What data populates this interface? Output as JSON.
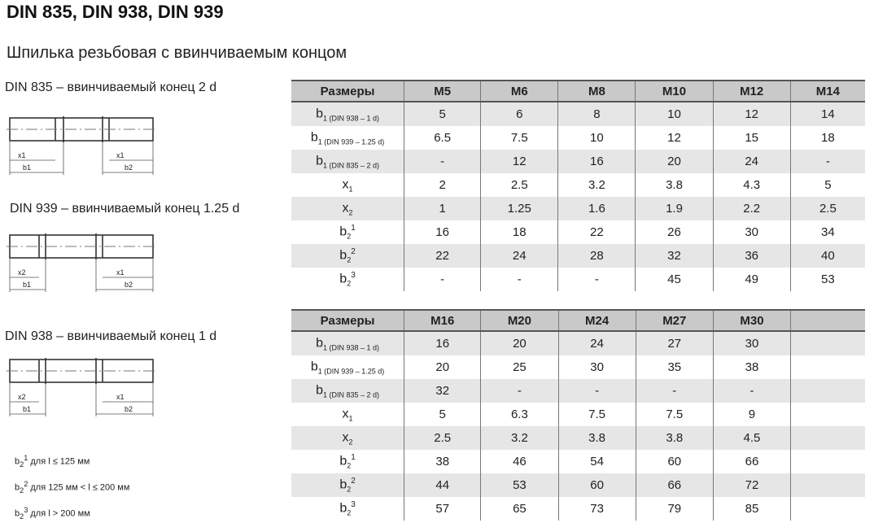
{
  "title": "DIN 835, DIN 938, DIN 939",
  "subtitle": "Шпилька резьбовая с ввинчиваемым концом",
  "diagrams": [
    {
      "caption": "DIN 835 – ввинчиваемый конец 2 d",
      "labels": [
        "x1",
        "b1",
        "x1",
        "b2"
      ]
    },
    {
      "caption": "DIN 939 – ввинчиваемый конец 1.25 d",
      "labels": [
        "x2",
        "b1",
        "x1",
        "b2"
      ]
    },
    {
      "caption": "DIN 938 – ввинчиваемый конец 1 d",
      "labels": [
        "x2",
        "b1",
        "x1",
        "b2"
      ]
    }
  ],
  "notes": [
    {
      "b": "b",
      "sub": "2",
      "sup": "1",
      "text": " для l ≤ 125 мм"
    },
    {
      "b": "b",
      "sub": "2",
      "sup": "2",
      "text": " для 125 мм < l ≤ 200 мм"
    },
    {
      "b": "b",
      "sub": "2",
      "sup": "3",
      "text": " для l > 200 мм"
    }
  ],
  "row_labels": [
    {
      "main": "b",
      "sub": "1 (DIN 938 – 1 d)",
      "sup": ""
    },
    {
      "main": "b",
      "sub": "1 (DIN 939 – 1.25 d)",
      "sup": ""
    },
    {
      "main": "b",
      "sub": "1 (DIN 835 – 2 d)",
      "sup": ""
    },
    {
      "main": "x",
      "sub": "1",
      "sup": ""
    },
    {
      "main": "x",
      "sub": "2",
      "sup": ""
    },
    {
      "main": "b",
      "sub": "2",
      "sup": "1"
    },
    {
      "main": "b",
      "sub": "2",
      "sup": "2"
    },
    {
      "main": "b",
      "sub": "2",
      "sup": "3"
    }
  ],
  "tables": [
    {
      "header": [
        "Размеры",
        "M5",
        "M6",
        "M8",
        "M10",
        "M12",
        "M14"
      ],
      "rows": [
        [
          "5",
          "6",
          "8",
          "10",
          "12",
          "14"
        ],
        [
          "6.5",
          "7.5",
          "10",
          "12",
          "15",
          "18"
        ],
        [
          "-",
          "12",
          "16",
          "20",
          "24",
          "-"
        ],
        [
          "2",
          "2.5",
          "3.2",
          "3.8",
          "4.3",
          "5"
        ],
        [
          "1",
          "1.25",
          "1.6",
          "1.9",
          "2.2",
          "2.5"
        ],
        [
          "16",
          "18",
          "22",
          "26",
          "30",
          "34"
        ],
        [
          "22",
          "24",
          "28",
          "32",
          "36",
          "40"
        ],
        [
          "-",
          "-",
          "-",
          "45",
          "49",
          "53"
        ]
      ]
    },
    {
      "header": [
        "Размеры",
        "M16",
        "M20",
        "M24",
        "M27",
        "M30",
        ""
      ],
      "rows": [
        [
          "16",
          "20",
          "24",
          "27",
          "30",
          ""
        ],
        [
          "20",
          "25",
          "30",
          "35",
          "38",
          ""
        ],
        [
          "32",
          "-",
          "-",
          "-",
          "-",
          ""
        ],
        [
          "5",
          "6.3",
          "7.5",
          "7.5",
          "9",
          ""
        ],
        [
          "2.5",
          "3.2",
          "3.8",
          "3.8",
          "4.5",
          ""
        ],
        [
          "38",
          "46",
          "54",
          "60",
          "66",
          ""
        ],
        [
          "44",
          "53",
          "60",
          "66",
          "72",
          ""
        ],
        [
          "57",
          "65",
          "73",
          "79",
          "85",
          ""
        ]
      ]
    }
  ]
}
